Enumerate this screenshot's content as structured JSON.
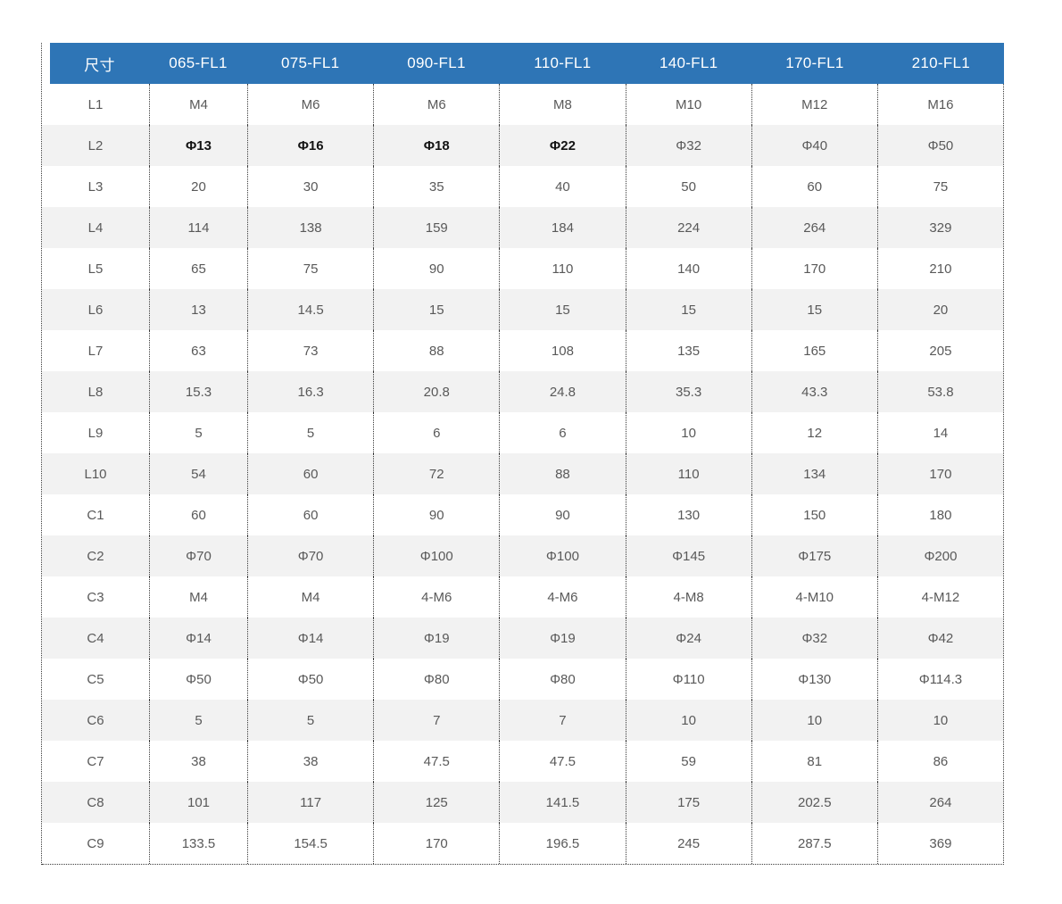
{
  "accent_color": "#2E75B6",
  "stripe_color": "#F2F2F2",
  "table": {
    "header": [
      "尺寸",
      "065-FL1",
      "075-FL1",
      "090-FL1",
      "110-FL1",
      "140-FL1",
      "170-FL1",
      "210-FL1"
    ],
    "rows": [
      {
        "label": "L1",
        "values": [
          "M4",
          "M6",
          "M6",
          "M8",
          "M10",
          "M12",
          "M16"
        ]
      },
      {
        "label": "L2",
        "values": [
          "Φ13",
          "Φ16",
          "Φ18",
          "Φ22",
          "Φ32",
          "Φ40",
          "Φ50"
        ],
        "bold_cols": [
          0,
          1,
          2,
          3
        ]
      },
      {
        "label": "L3",
        "values": [
          "20",
          "30",
          "35",
          "40",
          "50",
          "60",
          "75"
        ]
      },
      {
        "label": "L4",
        "values": [
          "114",
          "138",
          "159",
          "184",
          "224",
          "264",
          "329"
        ]
      },
      {
        "label": "L5",
        "values": [
          "65",
          "75",
          "90",
          "110",
          "140",
          "170",
          "210"
        ]
      },
      {
        "label": "L6",
        "values": [
          "13",
          "14.5",
          "15",
          "15",
          "15",
          "15",
          "20"
        ]
      },
      {
        "label": "L7",
        "values": [
          "63",
          "73",
          "88",
          "108",
          "135",
          "165",
          "205"
        ]
      },
      {
        "label": "L8",
        "values": [
          "15.3",
          "16.3",
          "20.8",
          "24.8",
          "35.3",
          "43.3",
          "53.8"
        ]
      },
      {
        "label": "L9",
        "values": [
          "5",
          "5",
          "6",
          "6",
          "10",
          "12",
          "14"
        ]
      },
      {
        "label": "L10",
        "values": [
          "54",
          "60",
          "72",
          "88",
          "110",
          "134",
          "170"
        ]
      },
      {
        "label": "C1",
        "values": [
          "60",
          "60",
          "90",
          "90",
          "130",
          "150",
          "180"
        ]
      },
      {
        "label": "C2",
        "values": [
          "Φ70",
          "Φ70",
          "Φ100",
          "Φ100",
          "Φ145",
          "Φ175",
          "Φ200"
        ]
      },
      {
        "label": "C3",
        "values": [
          "M4",
          "M4",
          "4-M6",
          "4-M6",
          "4-M8",
          "4-M10",
          "4-M12"
        ]
      },
      {
        "label": "C4",
        "values": [
          "Φ14",
          "Φ14",
          "Φ19",
          "Φ19",
          "Φ24",
          "Φ32",
          "Φ42"
        ]
      },
      {
        "label": "C5",
        "values": [
          "Φ50",
          "Φ50",
          "Φ80",
          "Φ80",
          "Φ110",
          "Φ130",
          "Φ114.3"
        ]
      },
      {
        "label": "C6",
        "values": [
          "5",
          "5",
          "7",
          "7",
          "10",
          "10",
          "10"
        ]
      },
      {
        "label": "C7",
        "values": [
          "38",
          "38",
          "47.5",
          "47.5",
          "59",
          "81",
          "86"
        ]
      },
      {
        "label": "C8",
        "values": [
          "101",
          "117",
          "125",
          "141.5",
          "175",
          "202.5",
          "264"
        ]
      },
      {
        "label": "C9",
        "values": [
          "133.5",
          "154.5",
          "170",
          "196.5",
          "245",
          "287.5",
          "369"
        ]
      }
    ]
  }
}
